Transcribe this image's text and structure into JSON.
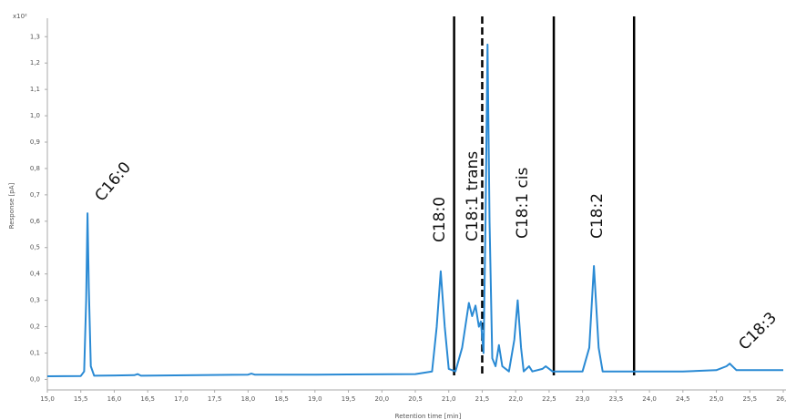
{
  "chart_data": {
    "type": "line",
    "y_label": "Response [pA]",
    "x_label": "Retention time [min]",
    "y_multiplier": "x10²",
    "color": "#2a8ad4",
    "xlim": [
      15.0,
      26.0
    ],
    "ylim": [
      -0.04,
      1.37
    ],
    "xticks": [
      {
        "value": 15.0,
        "label": "15,0"
      },
      {
        "value": 15.5,
        "label": "15,5"
      },
      {
        "value": 16.0,
        "label": "16,0"
      },
      {
        "value": 16.5,
        "label": "16,5"
      },
      {
        "value": 17.0,
        "label": "17,0"
      },
      {
        "value": 17.5,
        "label": "17,5"
      },
      {
        "value": 18.0,
        "label": "18,0"
      },
      {
        "value": 18.5,
        "label": "18,5"
      },
      {
        "value": 19.0,
        "label": "19,0"
      },
      {
        "value": 19.5,
        "label": "19,5"
      },
      {
        "value": 20.0,
        "label": "20,0"
      },
      {
        "value": 20.5,
        "label": "20,5"
      },
      {
        "value": 21.0,
        "label": "21,0"
      },
      {
        "value": 21.5,
        "label": "21,5"
      },
      {
        "value": 22.0,
        "label": "22,0"
      },
      {
        "value": 22.5,
        "label": "22,5"
      },
      {
        "value": 23.0,
        "label": "23,0"
      },
      {
        "value": 23.5,
        "label": "23,5"
      },
      {
        "value": 24.0,
        "label": "24,0"
      },
      {
        "value": 24.5,
        "label": "24,5"
      },
      {
        "value": 25.0,
        "label": "25,0"
      },
      {
        "value": 25.5,
        "label": "25,5"
      },
      {
        "value": 26.0,
        "label": "26,0"
      }
    ],
    "yticks": [
      {
        "value": 0.0,
        "label": "0,0"
      },
      {
        "value": 0.1,
        "label": "0,1"
      },
      {
        "value": 0.2,
        "label": "0,2"
      },
      {
        "value": 0.3,
        "label": "0,3"
      },
      {
        "value": 0.4,
        "label": "0,4"
      },
      {
        "value": 0.5,
        "label": "0,5"
      },
      {
        "value": 0.6,
        "label": "0,6"
      },
      {
        "value": 0.7,
        "label": "0,7"
      },
      {
        "value": 0.8,
        "label": "0,8"
      },
      {
        "value": 0.9,
        "label": "0,9"
      },
      {
        "value": 1.0,
        "label": "1,0"
      },
      {
        "value": 1.1,
        "label": "1,1"
      },
      {
        "value": 1.2,
        "label": "1,2"
      },
      {
        "value": 1.3,
        "label": "1,3"
      }
    ],
    "x": [
      15.0,
      15.5,
      15.55,
      15.58,
      15.6,
      15.62,
      15.65,
      15.7,
      16.3,
      16.35,
      16.4,
      18.0,
      18.05,
      18.1,
      19.0,
      20.5,
      20.75,
      20.82,
      20.88,
      20.94,
      21.0,
      21.1,
      21.2,
      21.3,
      21.35,
      21.4,
      21.45,
      21.48,
      21.52,
      21.55,
      21.58,
      21.61,
      21.65,
      21.7,
      21.75,
      21.8,
      21.9,
      21.98,
      22.03,
      22.08,
      22.12,
      22.2,
      22.25,
      22.4,
      22.45,
      22.55,
      23.0,
      23.1,
      23.17,
      23.24,
      23.3,
      23.8,
      24.5,
      25.0,
      25.15,
      25.2,
      25.3,
      26.0
    ],
    "values": [
      0.012,
      0.013,
      0.03,
      0.3,
      0.63,
      0.35,
      0.05,
      0.014,
      0.016,
      0.02,
      0.014,
      0.018,
      0.022,
      0.018,
      0.018,
      0.02,
      0.03,
      0.2,
      0.41,
      0.2,
      0.04,
      0.03,
      0.12,
      0.29,
      0.24,
      0.28,
      0.2,
      0.22,
      0.1,
      0.6,
      1.27,
      0.6,
      0.08,
      0.05,
      0.13,
      0.05,
      0.03,
      0.15,
      0.3,
      0.12,
      0.03,
      0.05,
      0.03,
      0.04,
      0.05,
      0.03,
      0.03,
      0.12,
      0.43,
      0.12,
      0.03,
      0.03,
      0.03,
      0.035,
      0.05,
      0.06,
      0.035,
      0.035
    ],
    "dividers": [
      {
        "value": 21.08,
        "style": "solid"
      },
      {
        "value": 21.5,
        "style": "dashed"
      },
      {
        "value": 22.57,
        "style": "solid"
      },
      {
        "value": 23.77,
        "style": "solid"
      }
    ],
    "annotations": [
      "C16:0",
      "C18:0",
      "C18:1 trans",
      "C18:1 cis",
      "C18:2",
      "C18:3"
    ]
  }
}
